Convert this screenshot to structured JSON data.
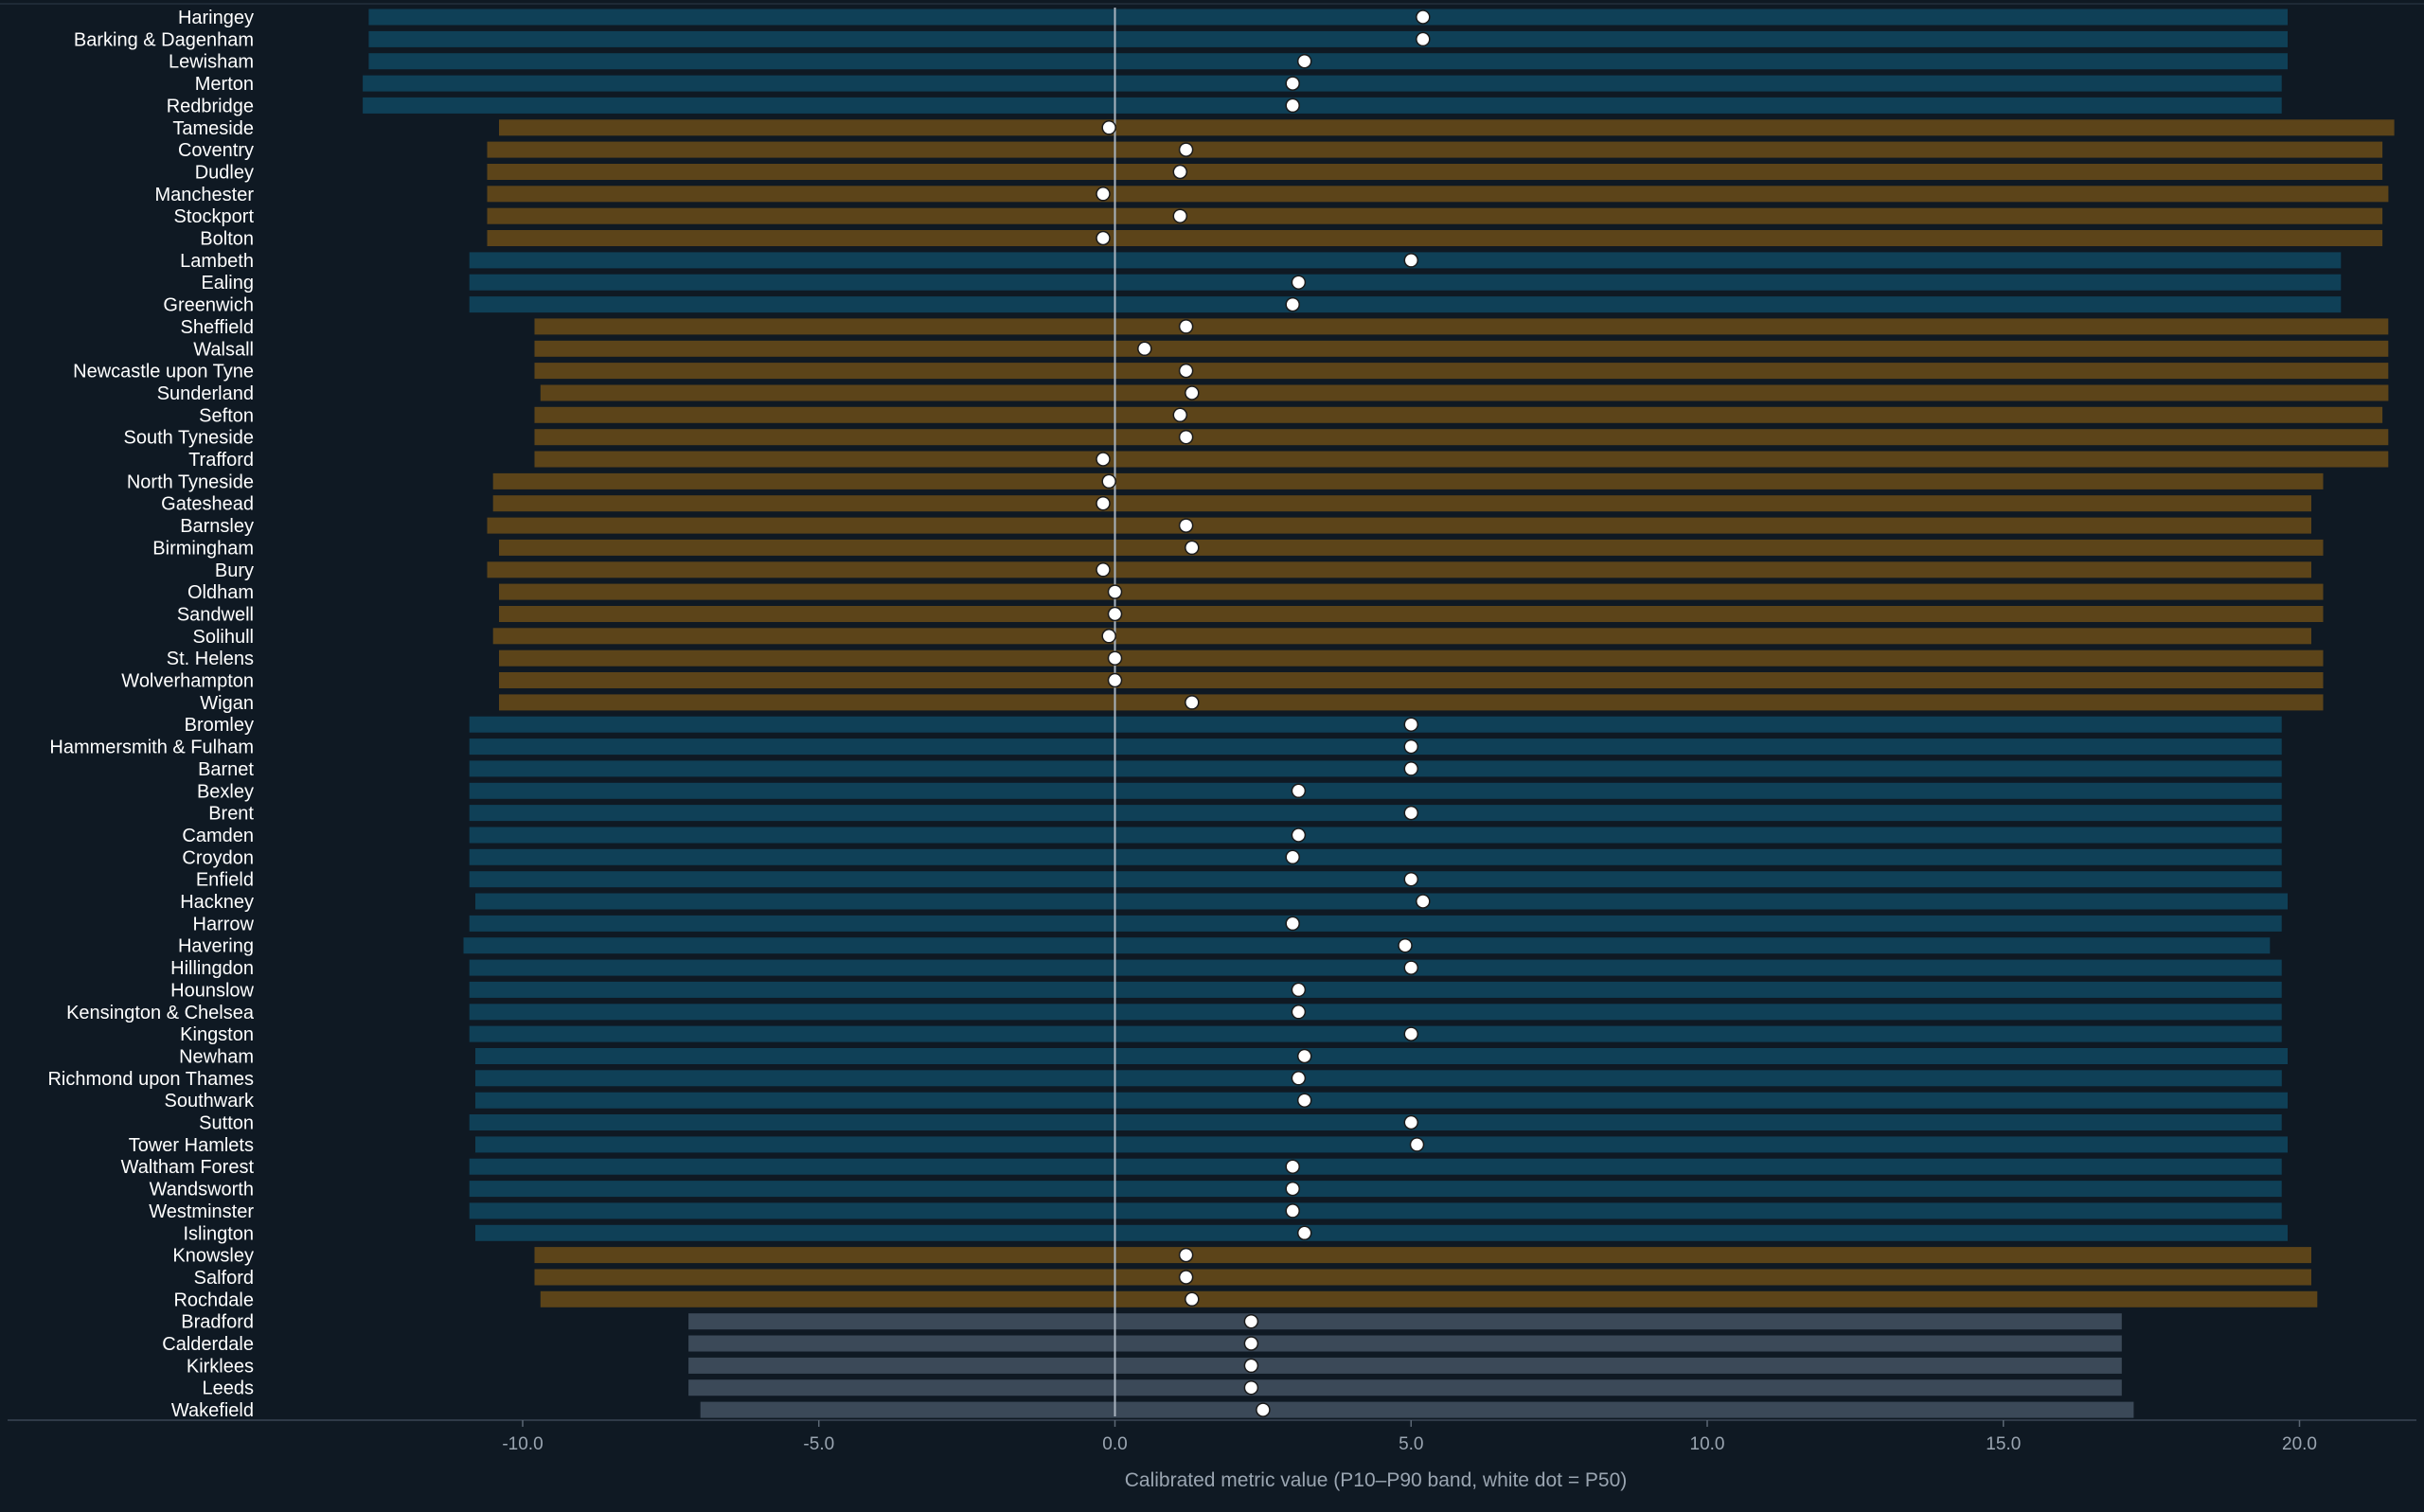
{
  "chart_data": {
    "type": "bar",
    "subtype": "range-band-with-median-dot",
    "title": "",
    "xlabel": "Calibrated metric value (P10–P90 band, white dot = P50)",
    "ylabel": "",
    "xlim": [
      -14.0,
      21.8
    ],
    "xticks": [
      -10.0,
      -5.0,
      0.0,
      5.0,
      10.0,
      15.0,
      20.0
    ],
    "xtick_labels": [
      "-10.0",
      "-5.0",
      "0.0",
      "5.0",
      "10.0",
      "15.0",
      "20.0"
    ],
    "grid": false,
    "legend": "none",
    "zero_line": true,
    "colors": {
      "background": "#0f1923",
      "group_a": "#0f4057",
      "group_b": "#5c4419",
      "group_c": "#3b4958",
      "median_dot": "#ffffff",
      "text": "#ffffff",
      "axis_text": "#9aa5b1",
      "zero_line": "#a9b4bf"
    },
    "series": [
      {
        "key": "p10",
        "values_ref": "rows.p10"
      },
      {
        "key": "p50",
        "values_ref": "rows.p50"
      },
      {
        "key": "p90",
        "values_ref": "rows.p90"
      }
    ],
    "rows": [
      {
        "label": "Haringey",
        "p10": -12.6,
        "p50": 5.2,
        "p90": 19.8,
        "group": "a"
      },
      {
        "label": "Barking & Dagenham",
        "p10": -12.6,
        "p50": 5.2,
        "p90": 19.8,
        "group": "a"
      },
      {
        "label": "Lewisham",
        "p10": -12.6,
        "p50": 3.2,
        "p90": 19.8,
        "group": "a"
      },
      {
        "label": "Merton",
        "p10": -12.7,
        "p50": 3.0,
        "p90": 19.7,
        "group": "a"
      },
      {
        "label": "Redbridge",
        "p10": -12.7,
        "p50": 3.0,
        "p90": 19.7,
        "group": "a"
      },
      {
        "label": "Tameside",
        "p10": -10.4,
        "p50": -0.1,
        "p90": 21.6,
        "group": "b"
      },
      {
        "label": "Coventry",
        "p10": -10.6,
        "p50": 1.2,
        "p90": 21.4,
        "group": "b"
      },
      {
        "label": "Dudley",
        "p10": -10.6,
        "p50": 1.1,
        "p90": 21.4,
        "group": "b"
      },
      {
        "label": "Manchester",
        "p10": -10.6,
        "p50": -0.2,
        "p90": 21.5,
        "group": "b"
      },
      {
        "label": "Stockport",
        "p10": -10.6,
        "p50": 1.1,
        "p90": 21.4,
        "group": "b"
      },
      {
        "label": "Bolton",
        "p10": -10.6,
        "p50": -0.2,
        "p90": 21.4,
        "group": "b"
      },
      {
        "label": "Lambeth",
        "p10": -10.9,
        "p50": 5.0,
        "p90": 20.7,
        "group": "a"
      },
      {
        "label": "Ealing",
        "p10": -10.9,
        "p50": 3.1,
        "p90": 20.7,
        "group": "a"
      },
      {
        "label": "Greenwich",
        "p10": -10.9,
        "p50": 3.0,
        "p90": 20.7,
        "group": "a"
      },
      {
        "label": "Sheffield",
        "p10": -9.8,
        "p50": 1.2,
        "p90": 21.5,
        "group": "b"
      },
      {
        "label": "Walsall",
        "p10": -9.8,
        "p50": 0.5,
        "p90": 21.5,
        "group": "b"
      },
      {
        "label": "Newcastle upon Tyne",
        "p10": -9.8,
        "p50": 1.2,
        "p90": 21.5,
        "group": "b"
      },
      {
        "label": "Sunderland",
        "p10": -9.7,
        "p50": 1.3,
        "p90": 21.5,
        "group": "b"
      },
      {
        "label": "Sefton",
        "p10": -9.8,
        "p50": 1.1,
        "p90": 21.4,
        "group": "b"
      },
      {
        "label": "South Tyneside",
        "p10": -9.8,
        "p50": 1.2,
        "p90": 21.5,
        "group": "b"
      },
      {
        "label": "Trafford",
        "p10": -9.8,
        "p50": -0.2,
        "p90": 21.5,
        "group": "b"
      },
      {
        "label": "North Tyneside",
        "p10": -10.5,
        "p50": -0.1,
        "p90": 20.4,
        "group": "b"
      },
      {
        "label": "Gateshead",
        "p10": -10.5,
        "p50": -0.2,
        "p90": 20.2,
        "group": "b"
      },
      {
        "label": "Barnsley",
        "p10": -10.6,
        "p50": 1.2,
        "p90": 20.2,
        "group": "b"
      },
      {
        "label": "Birmingham",
        "p10": -10.4,
        "p50": 1.3,
        "p90": 20.4,
        "group": "b"
      },
      {
        "label": "Bury",
        "p10": -10.6,
        "p50": -0.2,
        "p90": 20.2,
        "group": "b"
      },
      {
        "label": "Oldham",
        "p10": -10.4,
        "p50": 0.0,
        "p90": 20.4,
        "group": "b"
      },
      {
        "label": "Sandwell",
        "p10": -10.4,
        "p50": 0.0,
        "p90": 20.4,
        "group": "b"
      },
      {
        "label": "Solihull",
        "p10": -10.5,
        "p50": -0.1,
        "p90": 20.2,
        "group": "b"
      },
      {
        "label": "St. Helens",
        "p10": -10.4,
        "p50": 0.0,
        "p90": 20.4,
        "group": "b"
      },
      {
        "label": "Wolverhampton",
        "p10": -10.4,
        "p50": 0.0,
        "p90": 20.4,
        "group": "b"
      },
      {
        "label": "Wigan",
        "p10": -10.4,
        "p50": 1.3,
        "p90": 20.4,
        "group": "b"
      },
      {
        "label": "Bromley",
        "p10": -10.9,
        "p50": 5.0,
        "p90": 19.7,
        "group": "a"
      },
      {
        "label": "Hammersmith & Fulham",
        "p10": -10.9,
        "p50": 5.0,
        "p90": 19.7,
        "group": "a"
      },
      {
        "label": "Barnet",
        "p10": -10.9,
        "p50": 5.0,
        "p90": 19.7,
        "group": "a"
      },
      {
        "label": "Bexley",
        "p10": -10.9,
        "p50": 3.1,
        "p90": 19.7,
        "group": "a"
      },
      {
        "label": "Brent",
        "p10": -10.9,
        "p50": 5.0,
        "p90": 19.7,
        "group": "a"
      },
      {
        "label": "Camden",
        "p10": -10.9,
        "p50": 3.1,
        "p90": 19.7,
        "group": "a"
      },
      {
        "label": "Croydon",
        "p10": -10.9,
        "p50": 3.0,
        "p90": 19.7,
        "group": "a"
      },
      {
        "label": "Enfield",
        "p10": -10.9,
        "p50": 5.0,
        "p90": 19.7,
        "group": "a"
      },
      {
        "label": "Hackney",
        "p10": -10.8,
        "p50": 5.2,
        "p90": 19.8,
        "group": "a"
      },
      {
        "label": "Harrow",
        "p10": -10.9,
        "p50": 3.0,
        "p90": 19.7,
        "group": "a"
      },
      {
        "label": "Havering",
        "p10": -11.0,
        "p50": 4.9,
        "p90": 19.5,
        "group": "a"
      },
      {
        "label": "Hillingdon",
        "p10": -10.9,
        "p50": 5.0,
        "p90": 19.7,
        "group": "a"
      },
      {
        "label": "Hounslow",
        "p10": -10.9,
        "p50": 3.1,
        "p90": 19.7,
        "group": "a"
      },
      {
        "label": "Kensington & Chelsea",
        "p10": -10.9,
        "p50": 3.1,
        "p90": 19.7,
        "group": "a"
      },
      {
        "label": "Kingston",
        "p10": -10.9,
        "p50": 5.0,
        "p90": 19.7,
        "group": "a"
      },
      {
        "label": "Newham",
        "p10": -10.8,
        "p50": 3.2,
        "p90": 19.8,
        "group": "a"
      },
      {
        "label": "Richmond upon Thames",
        "p10": -10.8,
        "p50": 3.1,
        "p90": 19.7,
        "group": "a"
      },
      {
        "label": "Southwark",
        "p10": -10.8,
        "p50": 3.2,
        "p90": 19.8,
        "group": "a"
      },
      {
        "label": "Sutton",
        "p10": -10.9,
        "p50": 5.0,
        "p90": 19.7,
        "group": "a"
      },
      {
        "label": "Tower Hamlets",
        "p10": -10.8,
        "p50": 5.1,
        "p90": 19.8,
        "group": "a"
      },
      {
        "label": "Waltham Forest",
        "p10": -10.9,
        "p50": 3.0,
        "p90": 19.7,
        "group": "a"
      },
      {
        "label": "Wandsworth",
        "p10": -10.9,
        "p50": 3.0,
        "p90": 19.7,
        "group": "a"
      },
      {
        "label": "Westminster",
        "p10": -10.9,
        "p50": 3.0,
        "p90": 19.7,
        "group": "a"
      },
      {
        "label": "Islington",
        "p10": -10.8,
        "p50": 3.2,
        "p90": 19.8,
        "group": "a"
      },
      {
        "label": "Knowsley",
        "p10": -9.8,
        "p50": 1.2,
        "p90": 20.2,
        "group": "b"
      },
      {
        "label": "Salford",
        "p10": -9.8,
        "p50": 1.2,
        "p90": 20.2,
        "group": "b"
      },
      {
        "label": "Rochdale",
        "p10": -9.7,
        "p50": 1.3,
        "p90": 20.3,
        "group": "b"
      },
      {
        "label": "Bradford",
        "p10": -7.2,
        "p50": 2.3,
        "p90": 17.0,
        "group": "c"
      },
      {
        "label": "Calderdale",
        "p10": -7.2,
        "p50": 2.3,
        "p90": 17.0,
        "group": "c"
      },
      {
        "label": "Kirklees",
        "p10": -7.2,
        "p50": 2.3,
        "p90": 17.0,
        "group": "c"
      },
      {
        "label": "Leeds",
        "p10": -7.2,
        "p50": 2.3,
        "p90": 17.0,
        "group": "c"
      },
      {
        "label": "Wakefield",
        "p10": -7.0,
        "p50": 2.5,
        "p90": 17.2,
        "group": "c"
      }
    ]
  }
}
